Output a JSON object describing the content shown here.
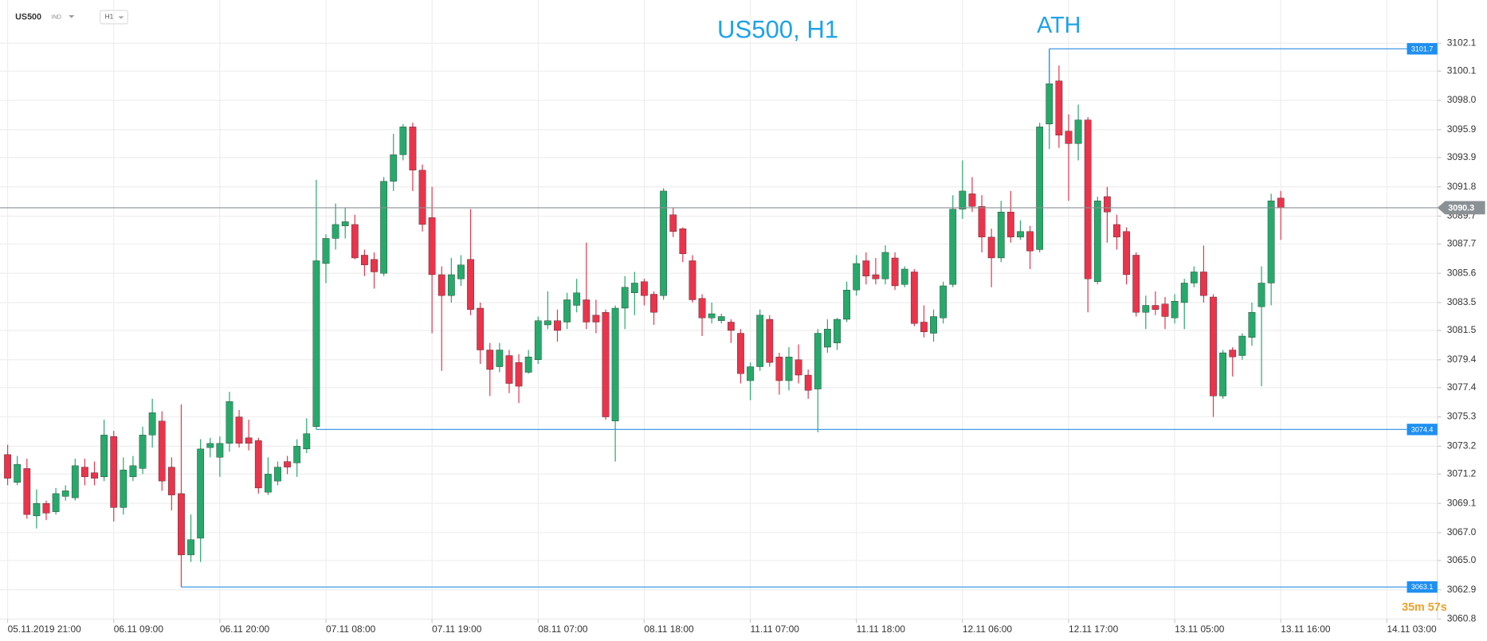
{
  "toolbar": {
    "symbol": "US500",
    "instrument_type": "IND",
    "timeframe": "H1"
  },
  "chart_data": {
    "type": "candlestick",
    "title": "US500, H1",
    "annotation": "ATH",
    "countdown": "35m 57s",
    "up_color": "#27a96b",
    "down_color": "#e9344c",
    "level_color": "#2b8fe3",
    "last_color": "#8a9094",
    "grid": true,
    "ylim": [
      3060.8,
      3105.2
    ],
    "yticks": [
      3060.8,
      3062.9,
      3065,
      3067,
      3069.1,
      3071.2,
      3073.2,
      3075.3,
      3077.4,
      3079.4,
      3081.5,
      3083.5,
      3085.6,
      3087.7,
      3089.7,
      3091.8,
      3093.9,
      3095.9,
      3098,
      3100.1,
      3102.1
    ],
    "ytick_labels": [
      "3060.8",
      "3062.9",
      "3065.0",
      "3067.0",
      "3069.1",
      "3071.2",
      "3073.2",
      "3075.3",
      "3077.4",
      "3079.4",
      "3081.5",
      "3083.5",
      "3085.6",
      "3087.7",
      "3089.7",
      "3091.8",
      "3093.9",
      "3095.9",
      "3098.0",
      "3100.1",
      "3102.1"
    ],
    "levels": [
      3101.7,
      3074.4,
      3063.1
    ],
    "last": 3090.3,
    "categories": [
      "05.11.2019 21:00",
      null,
      null,
      null,
      null,
      null,
      null,
      null,
      null,
      null,
      null,
      "06.11 09:00",
      null,
      null,
      null,
      null,
      null,
      null,
      null,
      null,
      null,
      null,
      "06.11 20:00",
      null,
      null,
      null,
      null,
      null,
      null,
      null,
      null,
      null,
      null,
      "07.11 08:00",
      null,
      null,
      null,
      null,
      null,
      null,
      null,
      null,
      null,
      null,
      "07.11 19:00",
      null,
      null,
      null,
      null,
      null,
      null,
      null,
      null,
      null,
      null,
      "08.11 07:00",
      null,
      null,
      null,
      null,
      null,
      null,
      null,
      null,
      null,
      null,
      "08.11 18:00",
      null,
      null,
      null,
      null,
      null,
      null,
      null,
      null,
      null,
      null,
      "11.11 07:00",
      null,
      null,
      null,
      null,
      null,
      null,
      null,
      null,
      null,
      null,
      "11.11 18:00",
      null,
      null,
      null,
      null,
      null,
      null,
      null,
      null,
      null,
      null,
      "12.11 06:00",
      null,
      null,
      null,
      null,
      null,
      null,
      null,
      null,
      null,
      null,
      "12.11 17:00",
      null,
      null,
      null,
      null,
      null,
      null,
      null,
      null,
      null,
      null,
      "13.11 05:00",
      null,
      null,
      null,
      null,
      null,
      null,
      null,
      null,
      null,
      null,
      "13.11 16:00",
      null,
      null,
      null,
      null,
      null,
      null,
      null,
      null,
      null,
      null,
      "14.11 03:00"
    ],
    "open": [
      3072.6,
      3070.6,
      3071.6,
      3068.2,
      3069.1,
      3068.5,
      3069.6,
      3069.5,
      3071.7,
      3071.3,
      3071.0,
      3073.9,
      3068.8,
      3071.0,
      3071.6,
      3074.0,
      3075.0,
      3071.7,
      3069.8,
      3065.4,
      3066.6,
      3073.1,
      3072.4,
      3073.4,
      3075.3,
      3073.8,
      3073.6,
      3069.9,
      3070.7,
      3072.1,
      3072.0,
      3073.0,
      3074.6,
      3086.3,
      3088.1,
      3089.0,
      3089.1,
      3086.9,
      3086.6,
      3085.6,
      3092.2,
      3094.1,
      3096.1,
      3093.0,
      3089.6,
      3085.5,
      3084.0,
      3085.2,
      3086.6,
      3083.1,
      3080.1,
      3078.9,
      3079.7,
      3079.2,
      3078.5,
      3079.4,
      3081.9,
      3082.2,
      3082.1,
      3083.3,
      3083.7,
      3082.6,
      3082.8,
      3075.0,
      3083.1,
      3084.2,
      3085.0,
      3084.1,
      3084.0,
      3089.8,
      3088.8,
      3086.5,
      3083.8,
      3082.4,
      3082.2,
      3082.1,
      3081.3,
      3077.9,
      3078.9,
      3082.3,
      3079.6,
      3077.9,
      3079.4,
      3078.3,
      3077.3,
      3080.3,
      3080.6,
      3082.3,
      3084.4,
      3086.5,
      3085.5,
      3085.2,
      3086.7,
      3084.8,
      3085.7,
      3082.1,
      3081.3,
      3082.4,
      3084.8,
      3090.2,
      3091.3,
      3090.4,
      3088.2,
      3086.7,
      3090.0,
      3088.2,
      3088.6,
      3087.3,
      3096.3,
      3099.4,
      3095.8,
      3094.9,
      3096.6,
      3085.0,
      3091.1,
      3089.1,
      3088.6,
      3086.9,
      3082.8,
      3083.3,
      3083.4,
      3082.4,
      3083.5,
      3084.9,
      3085.7,
      3083.9,
      3076.8,
      3080.1,
      3079.7,
      3081.0,
      3083.2,
      3084.9,
      3091.0,
      null,
      null,
      null,
      null,
      null,
      null,
      null,
      null,
      null,
      null,
      null
    ],
    "high": [
      3073.3,
      3072.5,
      3072.3,
      3070.1,
      3069.3,
      3070.2,
      3070.4,
      3072.3,
      3072.3,
      3072.1,
      3075.1,
      3074.3,
      3072.4,
      3072.5,
      3074.6,
      3076.6,
      3075.7,
      3072.4,
      3076.2,
      3068.3,
      3073.7,
      3073.8,
      3073.9,
      3077.1,
      3075.8,
      3075.1,
      3073.8,
      3072.4,
      3072.1,
      3072.5,
      3073.7,
      3075.2,
      3092.3,
      3088.4,
      3090.6,
      3090.3,
      3089.8,
      3087.3,
      3087.1,
      3092.5,
      3095.6,
      3096.3,
      3096.4,
      3093.4,
      3091.8,
      3086.1,
      3086.7,
      3086.9,
      3090.2,
      3083.5,
      3080.6,
      3080.6,
      3080.1,
      3079.8,
      3080.1,
      3082.5,
      3084.3,
      3083.0,
      3084.2,
      3085.2,
      3087.8,
      3083.7,
      3083.0,
      3083.3,
      3085.4,
      3085.7,
      3085.2,
      3084.3,
      3091.7,
      3090.3,
      3088.9,
      3086.9,
      3084.1,
      3083.5,
      3082.7,
      3082.3,
      3081.6,
      3079.2,
      3083.0,
      3082.6,
      3079.9,
      3080.3,
      3080.5,
      3078.7,
      3081.6,
      3082.3,
      3082.4,
      3085.0,
      3086.9,
      3087.1,
      3086.7,
      3087.6,
      3087.1,
      3086.1,
      3085.9,
      3083.3,
      3083.0,
      3085.0,
      3091.2,
      3093.7,
      3092.5,
      3091.2,
      3088.8,
      3090.8,
      3091.5,
      3089.4,
      3089.0,
      3096.4,
      3101.7,
      3100.5,
      3097.0,
      3097.7,
      3096.8,
      3091.1,
      3091.8,
      3089.8,
      3088.9,
      3087.1,
      3084.0,
      3084.3,
      3083.9,
      3084.1,
      3085.2,
      3086.1,
      3087.6,
      3084.1,
      3080.1,
      3080.3,
      3081.3,
      3083.5,
      3086.1,
      3091.3,
      3091.5,
      null,
      null,
      null,
      null,
      null,
      null,
      null,
      null,
      null,
      null,
      null
    ],
    "low": [
      3070.4,
      3070.4,
      3068.0,
      3067.3,
      3067.9,
      3068.3,
      3069.3,
      3069.3,
      3070.4,
      3070.4,
      3070.7,
      3067.8,
      3068.3,
      3070.7,
      3071.2,
      3073.1,
      3070.0,
      3068.6,
      3063.1,
      3064.9,
      3064.9,
      3072.4,
      3071.0,
      3072.8,
      3073.1,
      3072.9,
      3069.8,
      3069.7,
      3070.4,
      3071.2,
      3071.0,
      3072.7,
      3074.4,
      3084.9,
      3087.3,
      3088.1,
      3086.6,
      3085.4,
      3084.5,
      3085.4,
      3091.5,
      3093.7,
      3091.5,
      3088.6,
      3081.3,
      3078.6,
      3083.5,
      3084.7,
      3082.6,
      3079.1,
      3076.8,
      3078.5,
      3077.0,
      3076.3,
      3078.4,
      3079.1,
      3081.6,
      3080.7,
      3081.6,
      3082.8,
      3081.6,
      3081.3,
      3075.1,
      3072.1,
      3081.6,
      3082.6,
      3083.3,
      3081.9,
      3083.7,
      3088.2,
      3086.4,
      3083.5,
      3081.1,
      3082.0,
      3082.0,
      3080.6,
      3077.7,
      3076.5,
      3078.6,
      3078.9,
      3076.9,
      3077.2,
      3077.7,
      3076.6,
      3074.2,
      3079.9,
      3080.1,
      3082.1,
      3084.0,
      3084.8,
      3084.8,
      3084.8,
      3084.4,
      3084.6,
      3081.8,
      3081.0,
      3080.7,
      3082.0,
      3084.6,
      3089.5,
      3090.0,
      3087.1,
      3084.6,
      3086.4,
      3087.8,
      3088.0,
      3085.9,
      3087.1,
      3094.5,
      3094.6,
      3090.8,
      3093.7,
      3082.8,
      3084.8,
      3087.8,
      3087.3,
      3084.8,
      3082.5,
      3081.6,
      3082.6,
      3081.6,
      3082.0,
      3081.6,
      3084.6,
      3083.5,
      3075.3,
      3076.6,
      3078.2,
      3079.4,
      3080.4,
      3077.5,
      3083.3,
      3088.0,
      null,
      null,
      null,
      null,
      null,
      null,
      null,
      null,
      null,
      null,
      null
    ],
    "close": [
      3070.9,
      3071.9,
      3068.3,
      3069.1,
      3068.4,
      3069.8,
      3070.0,
      3071.8,
      3071.0,
      3070.9,
      3074.0,
      3068.8,
      3071.5,
      3071.8,
      3074.0,
      3075.6,
      3070.7,
      3069.7,
      3065.4,
      3066.5,
      3073.0,
      3073.4,
      3073.4,
      3076.4,
      3073.4,
      3073.4,
      3070.2,
      3071.2,
      3071.7,
      3071.7,
      3073.2,
      3074.1,
      3086.5,
      3088.1,
      3089.1,
      3089.3,
      3086.7,
      3086.2,
      3085.7,
      3092.2,
      3094.1,
      3096.1,
      3093.0,
      3089.1,
      3085.5,
      3084.0,
      3085.5,
      3086.2,
      3083.0,
      3080.1,
      3078.7,
      3080.1,
      3077.7,
      3077.5,
      3079.6,
      3082.2,
      3082.2,
      3081.5,
      3083.7,
      3084.2,
      3082.1,
      3082.1,
      3075.3,
      3083.1,
      3084.6,
      3084.9,
      3084.0,
      3082.8,
      3091.5,
      3088.6,
      3087.0,
      3083.7,
      3082.4,
      3082.7,
      3082.5,
      3081.5,
      3078.4,
      3078.9,
      3082.6,
      3079.2,
      3077.9,
      3079.6,
      3078.3,
      3077.2,
      3081.3,
      3081.6,
      3082.3,
      3084.4,
      3086.3,
      3085.4,
      3085.2,
      3087.1,
      3084.7,
      3085.9,
      3082.0,
      3081.4,
      3082.5,
      3084.7,
      3090.2,
      3091.5,
      3090.4,
      3088.2,
      3086.7,
      3090.0,
      3088.2,
      3088.6,
      3087.2,
      3096.1,
      3099.2,
      3095.5,
      3094.9,
      3096.6,
      3085.2,
      3090.8,
      3090.0,
      3088.2,
      3085.5,
      3082.8,
      3083.3,
      3083.0,
      3082.5,
      3083.6,
      3084.9,
      3085.7,
      3084.0,
      3076.8,
      3079.9,
      3079.6,
      3081.1,
      3082.8,
      3084.9,
      3090.8,
      3090.3,
      null,
      null,
      null,
      null,
      null,
      null,
      null,
      null,
      null,
      null,
      null
    ]
  }
}
